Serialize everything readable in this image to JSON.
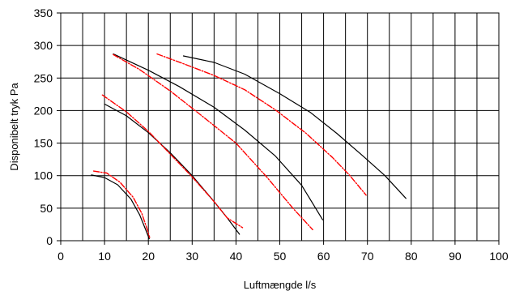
{
  "chart_data": {
    "type": "line",
    "xlabel": "Luftmængde l/s",
    "ylabel": "Disponibelt tryk Pa",
    "xlim": [
      0,
      100
    ],
    "ylim": [
      0,
      350
    ],
    "x_ticks": [
      0,
      10,
      20,
      30,
      40,
      50,
      60,
      70,
      80,
      90,
      100
    ],
    "y_ticks": [
      0,
      50,
      100,
      150,
      200,
      250,
      300,
      350
    ],
    "x_tick_labels": [
      "0",
      "10",
      "20",
      "30",
      "40",
      "50",
      "60",
      "70",
      "80",
      "90",
      "100"
    ],
    "y_tick_labels": [
      "0",
      "50",
      "100",
      "150",
      "200",
      "250",
      "300",
      "350"
    ],
    "grid": true,
    "grid_x_minor_step": 5,
    "legend": "none",
    "series": [
      {
        "color": "#000000",
        "style": "solid",
        "x": [
          7,
          10,
          13,
          16,
          18,
          19.5,
          20.2
        ],
        "y": [
          101,
          97,
          86,
          64,
          40,
          15,
          3
        ]
      },
      {
        "color": "#ff0000",
        "style": "dashed",
        "x": [
          7.5,
          10.5,
          13.5,
          16.5,
          18.5,
          19.7,
          20.3
        ],
        "y": [
          107,
          104,
          90,
          67,
          42,
          18,
          5
        ]
      },
      {
        "color": "#000000",
        "style": "solid",
        "x": [
          10,
          15,
          20,
          25,
          30,
          35,
          38,
          40.8
        ],
        "y": [
          210,
          192,
          166,
          135,
          100,
          60,
          35,
          10
        ]
      },
      {
        "color": "#ff0000",
        "style": "dashed",
        "x": [
          9.5,
          15,
          20,
          25,
          30,
          35,
          38,
          41.5
        ],
        "y": [
          224,
          198,
          168,
          133,
          98,
          60,
          35,
          20
        ]
      },
      {
        "color": "#000000",
        "style": "solid",
        "x": [
          12,
          20,
          27,
          35,
          42,
          49,
          55,
          59.8
        ],
        "y": [
          287,
          262,
          237,
          205,
          170,
          130,
          85,
          32
        ]
      },
      {
        "color": "#ff0000",
        "style": "dashed",
        "x": [
          12,
          18,
          25,
          32,
          40,
          47,
          53,
          57.5
        ],
        "y": [
          286,
          263,
          230,
          193,
          150,
          98,
          50,
          17
        ]
      },
      {
        "color": "#000000",
        "style": "solid",
        "x": [
          28,
          35,
          42,
          50,
          57,
          63,
          69,
          74,
          78.8
        ],
        "y": [
          284,
          274,
          256,
          226,
          197,
          165,
          130,
          100,
          65
        ]
      },
      {
        "color": "#ff0000",
        "style": "dashed",
        "x": [
          22,
          28,
          35,
          42,
          49,
          56,
          62,
          66,
          69.7
        ],
        "y": [
          287,
          272,
          254,
          232,
          201,
          165,
          128,
          100,
          70
        ]
      }
    ]
  }
}
